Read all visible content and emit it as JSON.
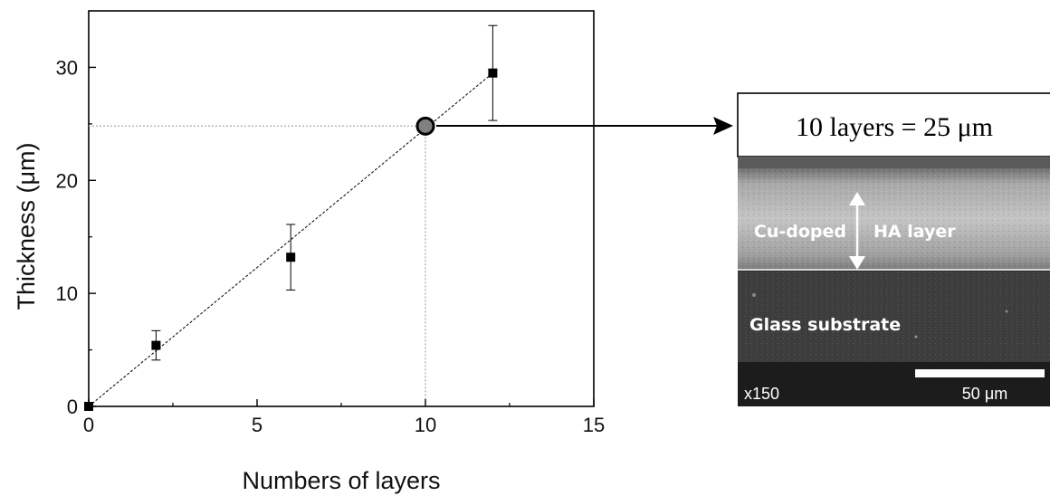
{
  "chart_data": {
    "type": "scatter",
    "xlabel": "Numbers of layers",
    "ylabel": "Thickness (μm)",
    "xlim": [
      0,
      15
    ],
    "ylim": [
      0,
      35
    ],
    "xticks": [
      0,
      5,
      10,
      15
    ],
    "yticks": [
      0,
      10,
      20,
      30
    ],
    "grid": false,
    "series": [
      {
        "points": [
          {
            "x": 0,
            "y": 0,
            "err": 0
          },
          {
            "x": 2,
            "y": 5.4,
            "err": 1.3
          },
          {
            "x": 6,
            "y": 13.2,
            "err": 2.9
          },
          {
            "x": 12,
            "y": 29.5,
            "err": 4.2
          }
        ]
      }
    ],
    "fit_line": {
      "from": [
        0,
        0
      ],
      "to": [
        12,
        29.5
      ],
      "style": "dashed"
    },
    "highlight": {
      "x": 10,
      "y": 24.8,
      "guides": "dotted"
    }
  },
  "callout": {
    "label": "10 layers = 25 μm"
  },
  "sem_image": {
    "layer_label": "Cu-doped",
    "layer_label_2": "HA layer",
    "substrate_label": "Glass substrate",
    "magnification": "x150",
    "scale_label": "50 μm"
  },
  "colors": {
    "marker": "#000000",
    "highlight_fill": "#808080",
    "guide": "#b0b0b0"
  }
}
